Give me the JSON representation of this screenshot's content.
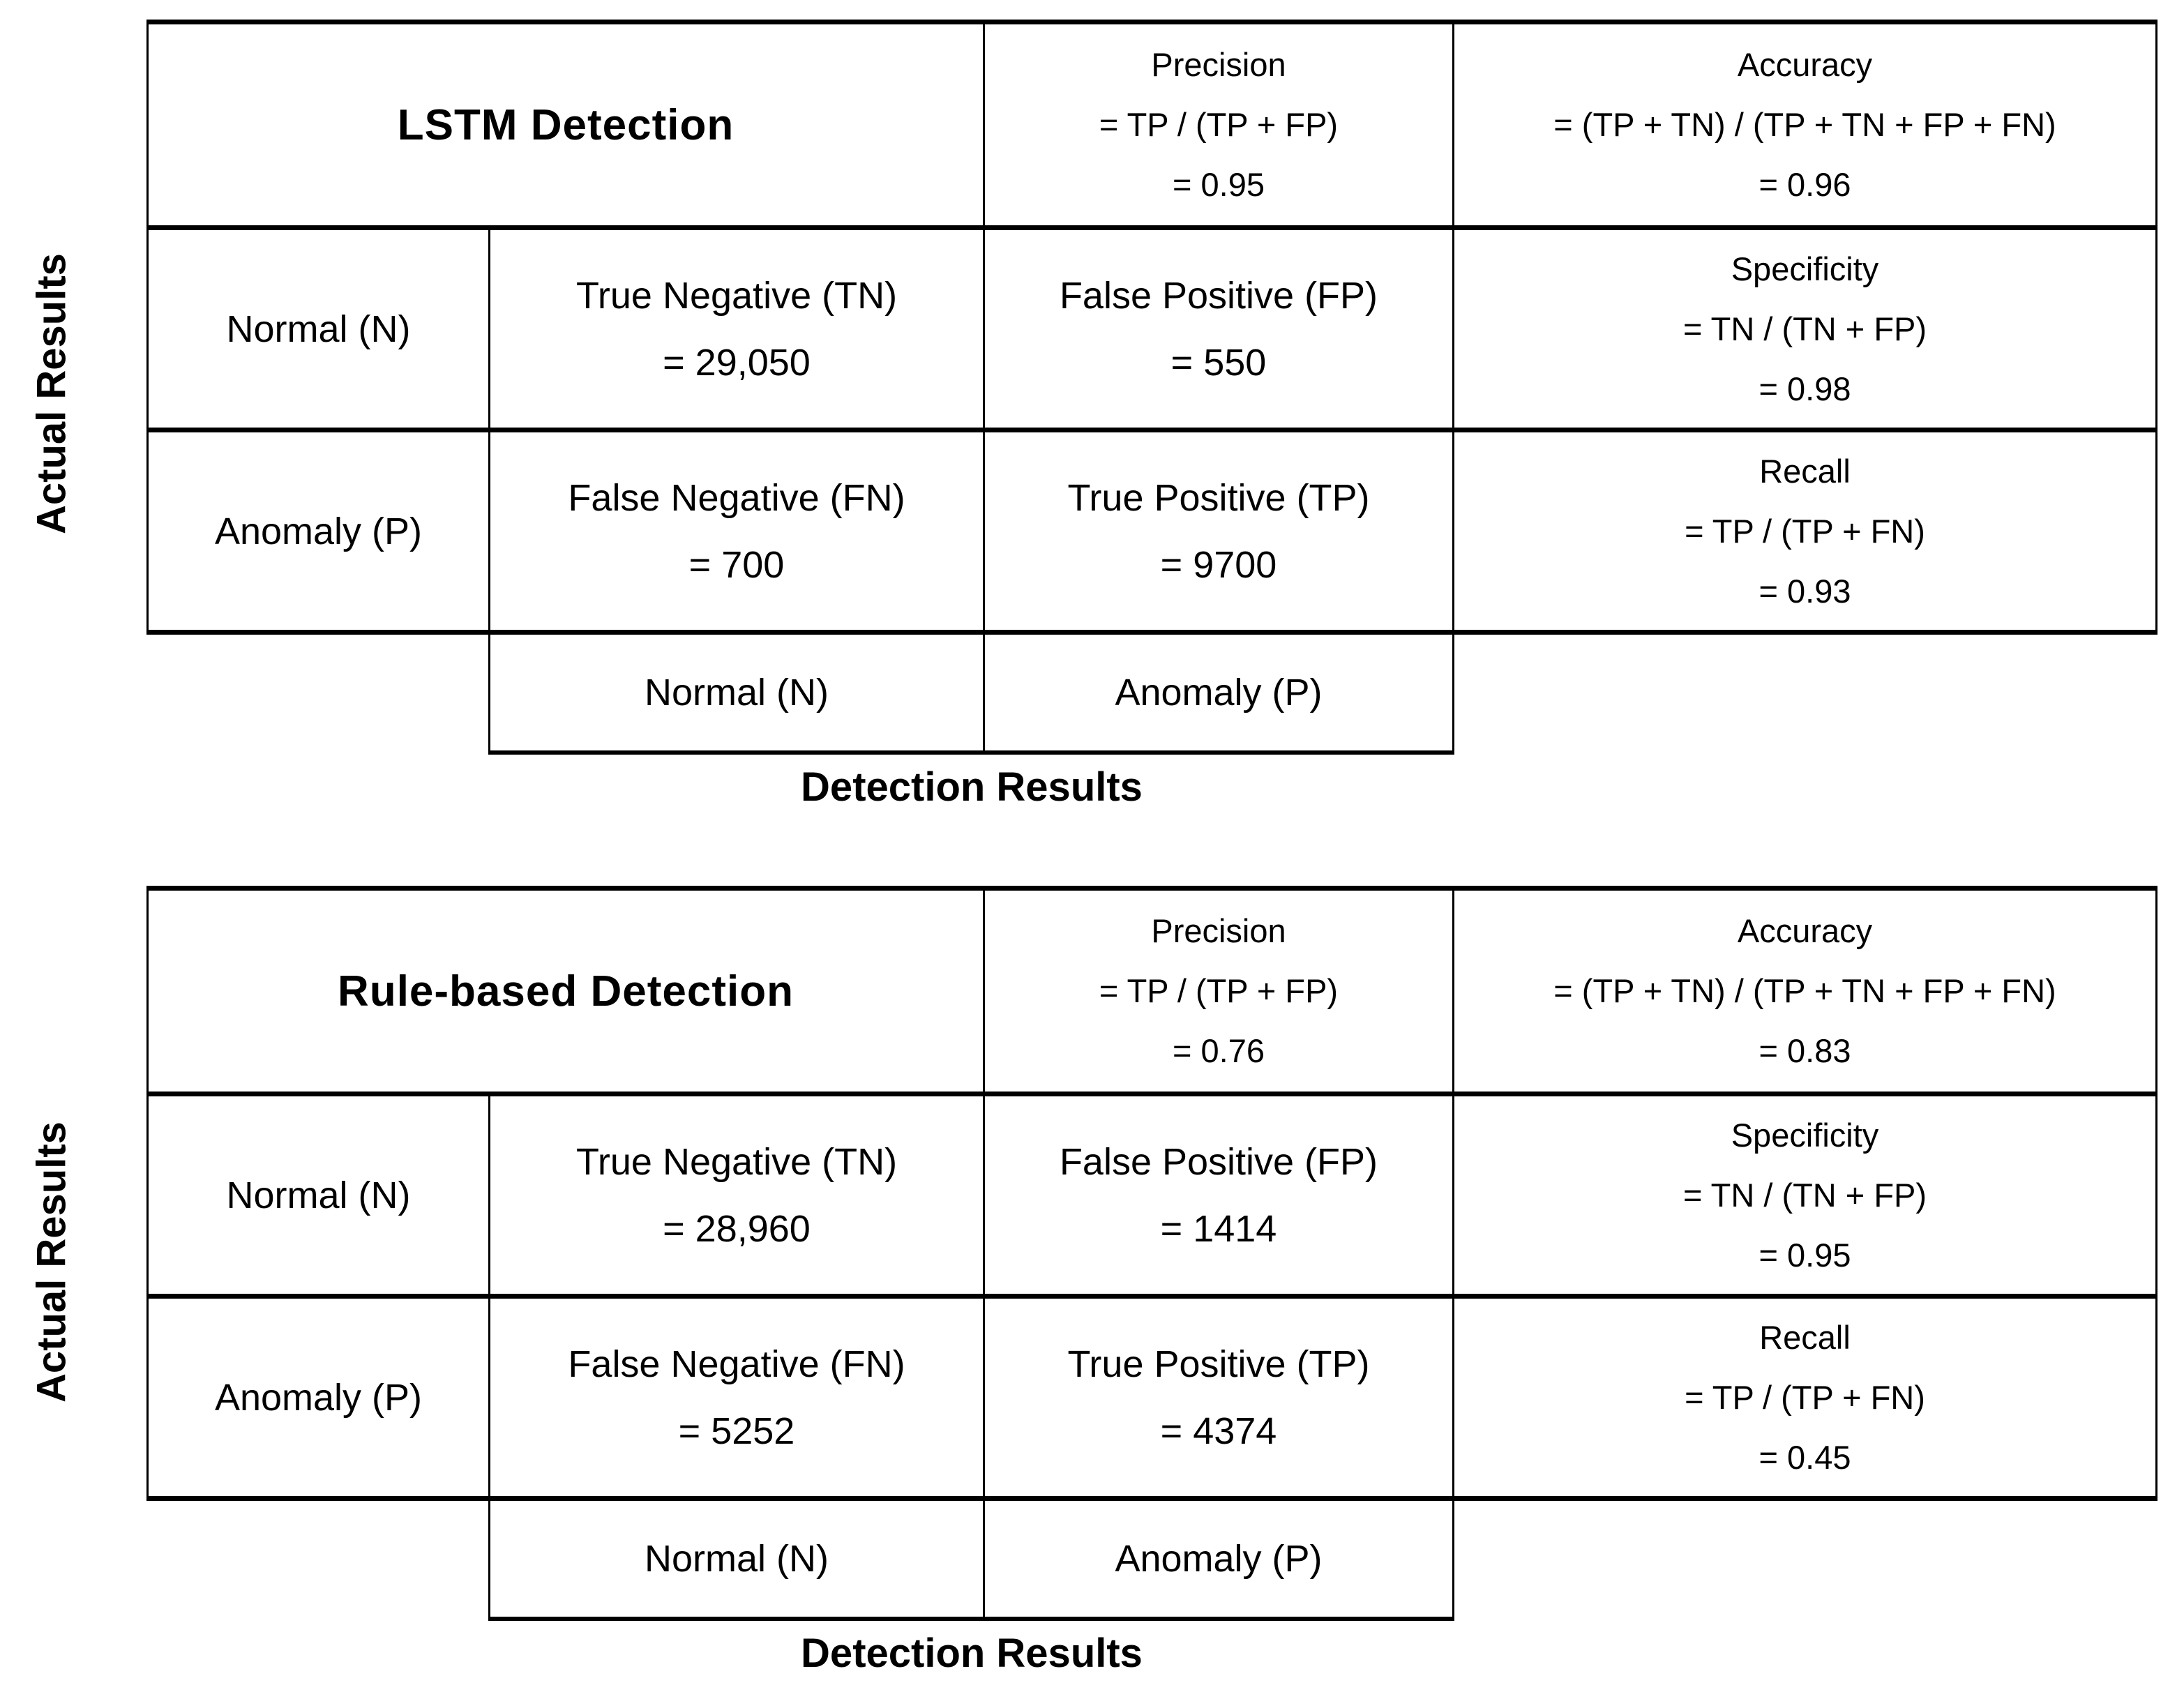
{
  "chart_data": [
    {
      "type": "table",
      "title": "LSTM Detection",
      "x_axis_label": "Detection Results",
      "y_axis_label": "Actual Results",
      "classes": [
        "Normal (N)",
        "Anomaly (P)"
      ],
      "confusion_matrix": {
        "true_negative": 29050,
        "false_positive": 550,
        "false_negative": 700,
        "true_positive": 9700
      },
      "metrics": {
        "precision": 0.95,
        "accuracy": 0.96,
        "specificity": 0.98,
        "recall": 0.93
      }
    },
    {
      "type": "table",
      "title": "Rule-based Detection",
      "x_axis_label": "Detection Results",
      "y_axis_label": "Actual Results",
      "classes": [
        "Normal (N)",
        "Anomaly (P)"
      ],
      "confusion_matrix": {
        "true_negative": 28960,
        "false_positive": 1414,
        "false_negative": 5252,
        "true_positive": 4374
      },
      "metrics": {
        "precision": 0.76,
        "accuracy": 0.83,
        "specificity": 0.95,
        "recall": 0.45
      }
    }
  ],
  "sections": [
    {
      "title": "LSTM Detection",
      "left_axis_label": "Actual Results",
      "bottom_axis_label": "Detection Results",
      "row_labels": [
        "Normal (N)",
        "Anomaly (P)"
      ],
      "col_labels": [
        "Normal (N)",
        "Anomaly (P)"
      ],
      "tn": {
        "label": "True Negative (TN)",
        "value": "= 29,050"
      },
      "fp": {
        "label": "False Positive (FP)",
        "value": "= 550"
      },
      "fn": {
        "label": "False Negative (FN)",
        "value": "= 700"
      },
      "tp": {
        "label": "True Positive (TP)",
        "value": "= 9700"
      },
      "precision": {
        "name": "Precision",
        "formula": "= TP / (TP + FP)",
        "value": "= 0.95"
      },
      "accuracy": {
        "name": "Accuracy",
        "formula": "= (TP + TN) / (TP + TN + FP + FN)",
        "value": "= 0.96"
      },
      "specificity": {
        "name": "Specificity",
        "formula": "= TN / (TN + FP)",
        "value": "= 0.98"
      },
      "recall": {
        "name": "Recall",
        "formula": "= TP / (TP + FN)",
        "value": "= 0.93"
      }
    },
    {
      "title": "Rule-based Detection",
      "left_axis_label": "Actual Results",
      "bottom_axis_label": "Detection Results",
      "row_labels": [
        "Normal (N)",
        "Anomaly (P)"
      ],
      "col_labels": [
        "Normal (N)",
        "Anomaly (P)"
      ],
      "tn": {
        "label": "True Negative (TN)",
        "value": "= 28,960"
      },
      "fp": {
        "label": "False Positive (FP)",
        "value": "= 1414"
      },
      "fn": {
        "label": "False Negative (FN)",
        "value": "= 5252"
      },
      "tp": {
        "label": "True Positive (TP)",
        "value": "= 4374"
      },
      "precision": {
        "name": "Precision",
        "formula": "= TP / (TP + FP)",
        "value": "= 0.76"
      },
      "accuracy": {
        "name": "Accuracy",
        "formula": "= (TP + TN) / (TP + TN + FP + FN)",
        "value": "= 0.83"
      },
      "specificity": {
        "name": "Specificity",
        "formula": "= TN / (TN + FP)",
        "value": "= 0.95"
      },
      "recall": {
        "name": "Recall",
        "formula": "= TP / (TP + FN)",
        "value": "= 0.45"
      }
    }
  ],
  "colors": {
    "background": "#ffffff",
    "border": "#000000",
    "text": "#000000"
  }
}
